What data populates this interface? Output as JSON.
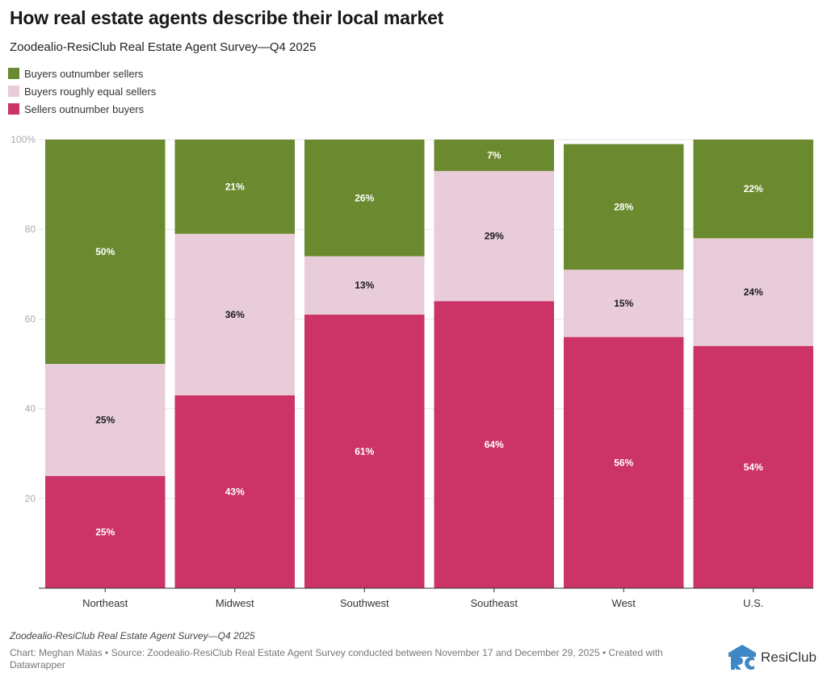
{
  "header": {
    "title": "How real estate agents describe their local market",
    "subtitle": "Zoodealio-ResiClub Real Estate Agent Survey—Q4 2025"
  },
  "legend": [
    {
      "label": "Buyers outnumber sellers",
      "color": "#6b8a2f"
    },
    {
      "label": "Buyers roughly equal sellers",
      "color": "#e8ccd9"
    },
    {
      "label": "Sellers outnumber buyers",
      "color": "#cc3366"
    }
  ],
  "chart_data": {
    "type": "bar",
    "stacked": true,
    "title": "How real estate agents describe their local market",
    "subtitle": "Zoodealio-ResiClub Real Estate Agent Survey—Q4 2025",
    "xlabel": "",
    "ylabel": "",
    "ylim": [
      0,
      100
    ],
    "yticks": [
      20,
      40,
      60,
      80,
      100
    ],
    "ytick_labels": [
      "20",
      "40",
      "60",
      "80",
      "100%"
    ],
    "grid": true,
    "legend_position": "top-left",
    "categories": [
      "Northeast",
      "Midwest",
      "Southwest",
      "Southeast",
      "West",
      "U.S."
    ],
    "series": [
      {
        "name": "Sellers outnumber buyers",
        "color": "#cc3366",
        "label_color": "#ffffff",
        "values": [
          25,
          43,
          61,
          64,
          56,
          54
        ]
      },
      {
        "name": "Buyers roughly equal sellers",
        "color": "#e8ccd9",
        "label_color": "#1a1a1a",
        "values": [
          25,
          36,
          13,
          29,
          15,
          24
        ]
      },
      {
        "name": "Buyers outnumber sellers",
        "color": "#6b8a2f",
        "label_color": "#ffffff",
        "values": [
          50,
          21,
          26,
          7,
          28,
          22
        ]
      }
    ]
  },
  "footer": {
    "notes": "Zoodealio-ResiClub Real Estate Agent Survey—Q4 2025",
    "source": "Chart: Meghan Malas • Source: Zoodealio-ResiClub Real Estate Agent Survey conducted between November 17 and December 29, 2025 • Created with Datawrapper",
    "logo_text": "ResiClub"
  }
}
